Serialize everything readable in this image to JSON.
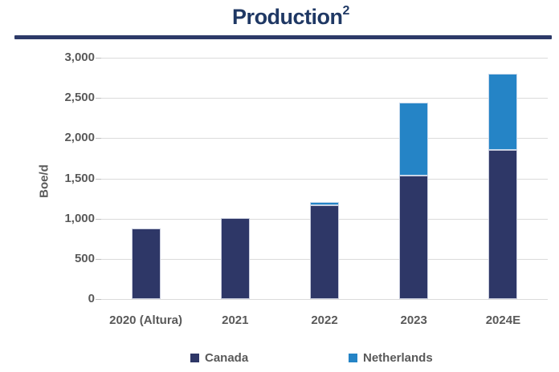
{
  "title": {
    "text": "Production",
    "superscript": "2"
  },
  "y_axis": {
    "label": "Boe/d",
    "ticks": [
      "3,000",
      "2,500",
      "2,000",
      "1,500",
      "1,000",
      "500",
      "0"
    ]
  },
  "x_axis": {
    "categories": [
      "2020 (Altura)",
      "2021",
      "2022",
      "2023",
      "2024E"
    ]
  },
  "legend": {
    "items": [
      {
        "label": "Canada",
        "color": "#2E3767"
      },
      {
        "label": "Netherlands",
        "color": "#2584C6"
      }
    ]
  },
  "colors": {
    "title": "#1F3864",
    "divider": "#2D3A68",
    "axis_text": "#595959",
    "gridline": "#DBDBDB",
    "canada": "#2E3767",
    "netherlands": "#2584C6"
  },
  "chart_data": {
    "type": "bar",
    "stacked": true,
    "title": "Production²",
    "ylabel": "Boe/d",
    "categories": [
      "2020 (Altura)",
      "2021",
      "2022",
      "2023",
      "2024E"
    ],
    "series": [
      {
        "name": "Canada",
        "color": "#2E3767",
        "values": [
          875,
          1010,
          1170,
          1540,
          1850
        ]
      },
      {
        "name": "Netherlands",
        "color": "#2584C6",
        "values": [
          0,
          0,
          40,
          900,
          950
        ]
      }
    ],
    "totals": [
      875,
      1010,
      1210,
      2440,
      2800
    ],
    "ylim": [
      0,
      3000
    ],
    "ytick_step": 500,
    "grid": true,
    "legend_position": "bottom"
  }
}
